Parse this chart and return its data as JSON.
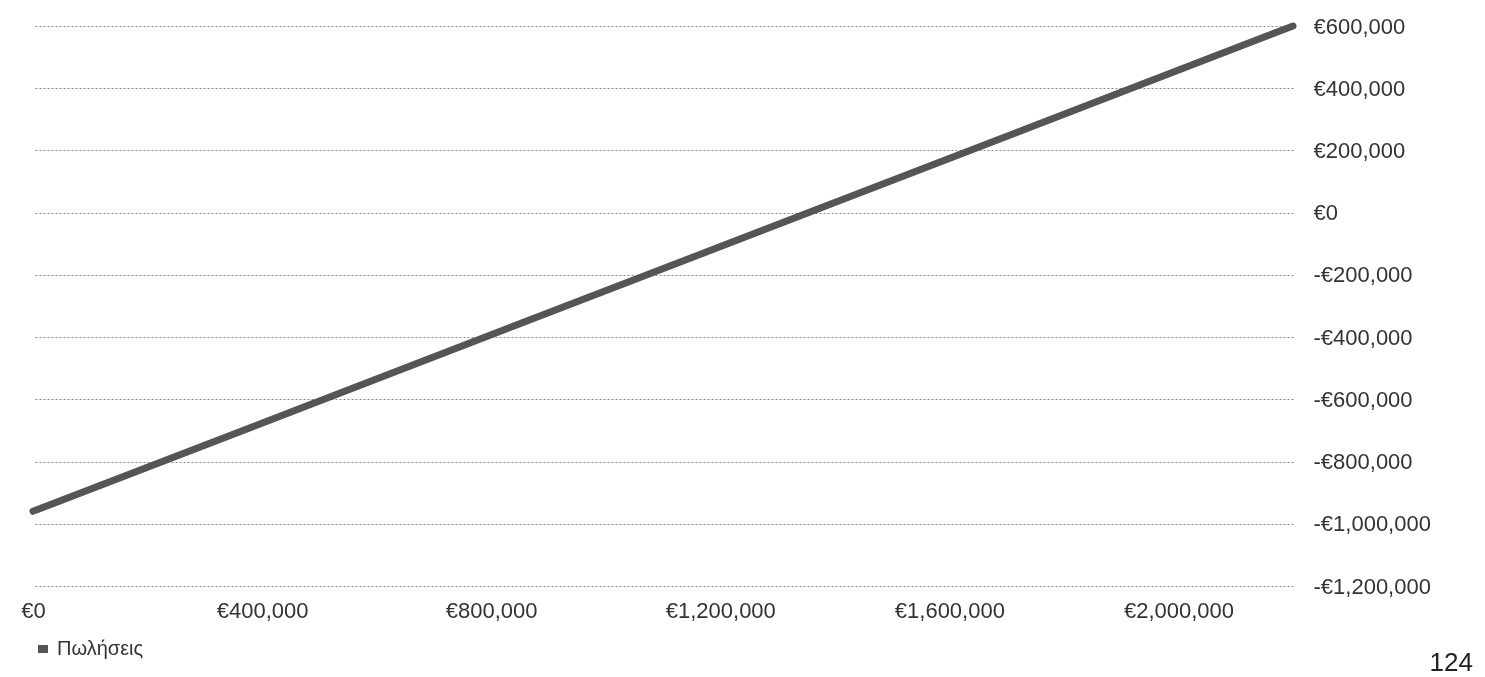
{
  "chart_data": {
    "type": "line",
    "x": [
      0,
      2200000
    ],
    "series": [
      {
        "name": "Πωλήσεις",
        "color": "#555555",
        "values": [
          -960000,
          600000
        ]
      }
    ],
    "xlim": [
      0,
      2200000
    ],
    "xticks": [
      {
        "value": 0,
        "label": "€0"
      },
      {
        "value": 400000,
        "label": "€400,000"
      },
      {
        "value": 800000,
        "label": "€800,000"
      },
      {
        "value": 1200000,
        "label": "€1,200,000"
      },
      {
        "value": 1600000,
        "label": "€1,600,000"
      },
      {
        "value": 2000000,
        "label": "€2,000,000"
      }
    ],
    "ylim": [
      -1200000,
      600000
    ],
    "yticks": [
      {
        "value": -1200000,
        "label": "-€1,200,000"
      },
      {
        "value": -1000000,
        "label": "-€1,000,000"
      },
      {
        "value": -800000,
        "label": "-€800,000"
      },
      {
        "value": -600000,
        "label": "-€600,000"
      },
      {
        "value": -400000,
        "label": "-€400,000"
      },
      {
        "value": -200000,
        "label": "-€200,000"
      },
      {
        "value": 0,
        "label": "€0"
      },
      {
        "value": 200000,
        "label": "€200,000"
      },
      {
        "value": 400000,
        "label": "€400,000"
      },
      {
        "value": 600000,
        "label": "€600,000"
      }
    ],
    "grid": "y",
    "legend": "bottom",
    "marker": "none",
    "line_style": "solid",
    "annotations": [
      "124"
    ]
  }
}
